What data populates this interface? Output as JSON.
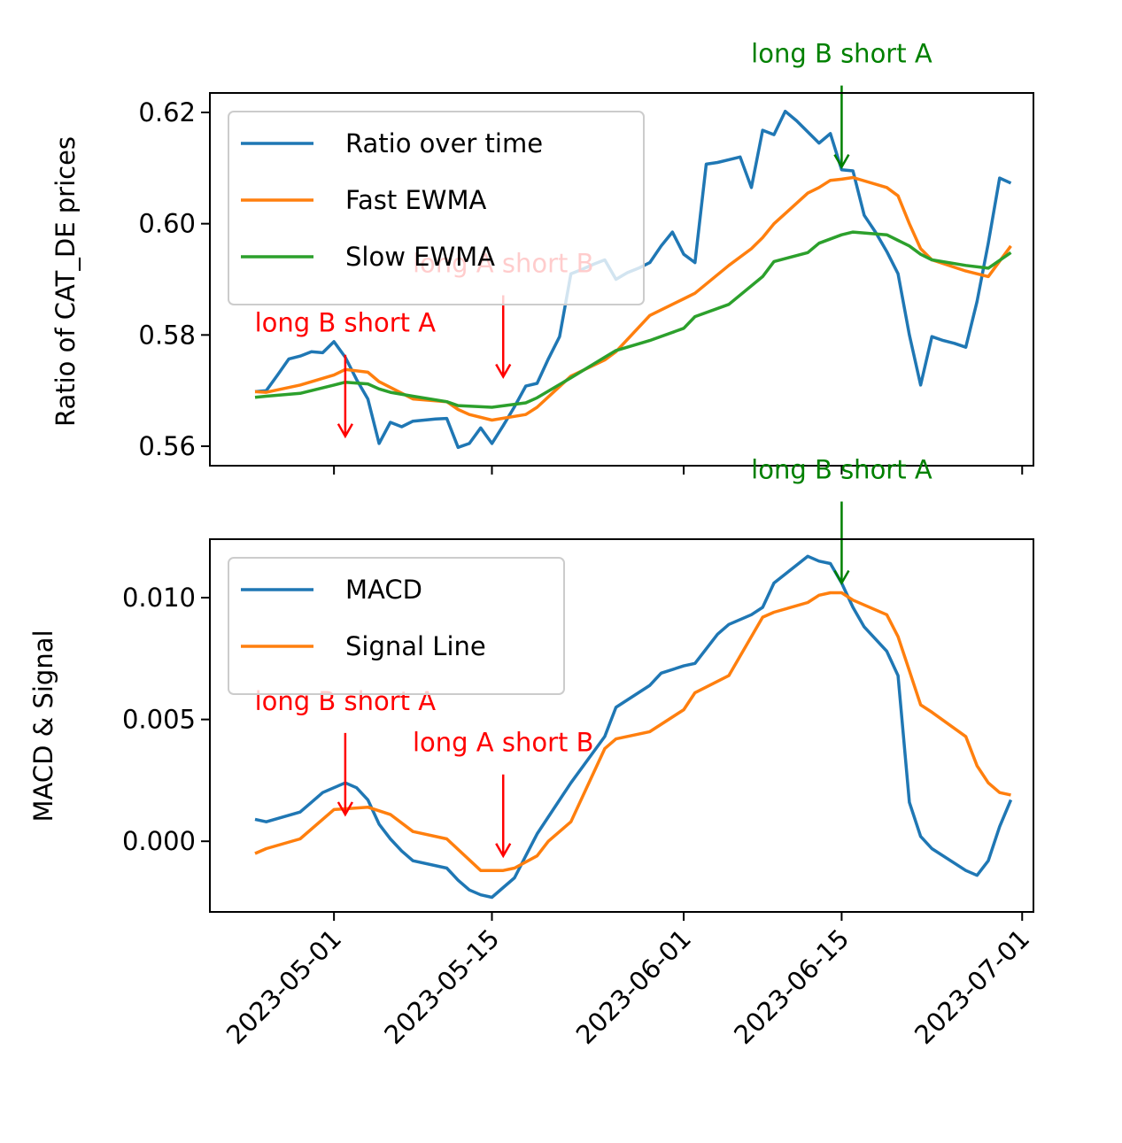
{
  "chart_data": [
    {
      "type": "line",
      "ylabel": "Ratio of CAT_DE prices",
      "ylim": [
        0.5565,
        0.6235
      ],
      "yticks": [
        0.56,
        0.58,
        0.6,
        0.62
      ],
      "ytick_labels": [
        "0.56",
        "0.58",
        "0.60",
        "0.62"
      ],
      "xlim": [
        "2023-04-20",
        "2023-07-02"
      ],
      "legend_position": "upper-left",
      "series": [
        {
          "name": "Ratio over time",
          "color": "#1f77b4",
          "x": [
            "2023-04-24",
            "2023-04-25",
            "2023-04-26",
            "2023-04-27",
            "2023-04-28",
            "2023-04-29",
            "2023-04-30",
            "2023-05-01",
            "2023-05-02",
            "2023-05-03",
            "2023-05-04",
            "2023-05-05",
            "2023-05-06",
            "2023-05-07",
            "2023-05-08",
            "2023-05-09",
            "2023-05-10",
            "2023-05-11",
            "2023-05-12",
            "2023-05-13",
            "2023-05-14",
            "2023-05-15",
            "2023-05-16",
            "2023-05-17",
            "2023-05-18",
            "2023-05-19",
            "2023-05-20",
            "2023-05-21",
            "2023-05-22",
            "2023-05-23",
            "2023-05-24",
            "2023-05-25",
            "2023-05-26",
            "2023-05-27",
            "2023-05-28",
            "2023-05-29",
            "2023-05-30",
            "2023-05-31",
            "2023-06-01",
            "2023-06-02",
            "2023-06-03",
            "2023-06-04",
            "2023-06-05",
            "2023-06-06",
            "2023-06-07",
            "2023-06-08",
            "2023-06-09",
            "2023-06-10",
            "2023-06-11",
            "2023-06-12",
            "2023-06-13",
            "2023-06-14",
            "2023-06-15",
            "2023-06-16",
            "2023-06-17",
            "2023-06-18",
            "2023-06-19",
            "2023-06-20",
            "2023-06-21",
            "2023-06-22",
            "2023-06-23",
            "2023-06-24",
            "2023-06-25",
            "2023-06-26",
            "2023-06-27",
            "2023-06-28",
            "2023-06-29",
            "2023-06-30"
          ],
          "values": [
            0.5698,
            0.57,
            0.5728,
            0.5757,
            0.5762,
            0.577,
            0.5768,
            0.5788,
            0.576,
            0.572,
            0.5685,
            0.5605,
            0.5643,
            0.5635,
            0.5645,
            0.5647,
            0.5649,
            0.565,
            0.5598,
            0.5605,
            0.5633,
            0.5605,
            0.5637,
            0.5671,
            0.5708,
            0.5713,
            0.5757,
            0.5797,
            0.591,
            0.5918,
            0.5927,
            0.5935,
            0.59,
            0.5912,
            0.592,
            0.593,
            0.596,
            0.5985,
            0.5945,
            0.593,
            0.6107,
            0.611,
            0.6115,
            0.612,
            0.6065,
            0.6168,
            0.616,
            0.6202,
            0.6185,
            0.6165,
            0.6145,
            0.6162,
            0.6097,
            0.6095,
            0.6015,
            0.5985,
            0.595,
            0.591,
            0.58,
            0.571,
            0.5797,
            0.579,
            0.5785,
            0.5778,
            0.586,
            0.5965,
            0.6082,
            0.6073
          ]
        },
        {
          "name": "Fast EWMA",
          "color": "#ff7f0e",
          "x": [
            "2023-04-24",
            "2023-04-25",
            "2023-04-28",
            "2023-05-01",
            "2023-05-02",
            "2023-05-04",
            "2023-05-05",
            "2023-05-08",
            "2023-05-11",
            "2023-05-12",
            "2023-05-13",
            "2023-05-15",
            "2023-05-18",
            "2023-05-19",
            "2023-05-22",
            "2023-05-25",
            "2023-05-26",
            "2023-05-29",
            "2023-06-01",
            "2023-06-02",
            "2023-06-05",
            "2023-06-07",
            "2023-06-08",
            "2023-06-09",
            "2023-06-12",
            "2023-06-13",
            "2023-06-14",
            "2023-06-15",
            "2023-06-16",
            "2023-06-19",
            "2023-06-20",
            "2023-06-21",
            "2023-06-22",
            "2023-06-23",
            "2023-06-26",
            "2023-06-28",
            "2023-06-30"
          ],
          "values": [
            0.5698,
            0.5697,
            0.571,
            0.5728,
            0.5738,
            0.5733,
            0.5716,
            0.5685,
            0.568,
            0.5666,
            0.5657,
            0.5647,
            0.5657,
            0.567,
            0.5726,
            0.5755,
            0.577,
            0.5835,
            0.5865,
            0.5875,
            0.5925,
            0.5955,
            0.5975,
            0.6,
            0.6055,
            0.6065,
            0.6078,
            0.608,
            0.6083,
            0.6065,
            0.605,
            0.6,
            0.5955,
            0.5935,
            0.5915,
            0.5905,
            0.596
          ]
        },
        {
          "name": "Slow EWMA",
          "color": "#2ca02c",
          "x": [
            "2023-04-24",
            "2023-04-25",
            "2023-04-28",
            "2023-05-01",
            "2023-05-02",
            "2023-05-04",
            "2023-05-05",
            "2023-05-06",
            "2023-05-08",
            "2023-05-11",
            "2023-05-12",
            "2023-05-15",
            "2023-05-18",
            "2023-05-19",
            "2023-05-22",
            "2023-05-25",
            "2023-05-26",
            "2023-05-29",
            "2023-06-01",
            "2023-06-02",
            "2023-06-05",
            "2023-06-08",
            "2023-06-09",
            "2023-06-12",
            "2023-06-13",
            "2023-06-15",
            "2023-06-16",
            "2023-06-19",
            "2023-06-20",
            "2023-06-21",
            "2023-06-22",
            "2023-06-23",
            "2023-06-26",
            "2023-06-28",
            "2023-06-30"
          ],
          "values": [
            0.5688,
            0.569,
            0.5695,
            0.571,
            0.5715,
            0.5712,
            0.5703,
            0.5697,
            0.569,
            0.568,
            0.5673,
            0.567,
            0.5678,
            0.5687,
            0.5723,
            0.576,
            0.5772,
            0.579,
            0.5812,
            0.5833,
            0.5855,
            0.5905,
            0.5932,
            0.5948,
            0.5965,
            0.598,
            0.5985,
            0.598,
            0.597,
            0.596,
            0.5945,
            0.5935,
            0.5925,
            0.592,
            0.5948
          ]
        }
      ],
      "annotations": [
        {
          "text": "long B short A",
          "date": "2023-05-02",
          "value": 0.5618,
          "color": "#ff0000"
        },
        {
          "text": "long A short B",
          "date": "2023-05-16",
          "value": 0.5725,
          "color": "#ff0000"
        },
        {
          "text": "long B short A",
          "date": "2023-06-15",
          "value": 0.6102,
          "color": "#008000"
        }
      ]
    },
    {
      "type": "line",
      "ylabel": "MACD & Signal",
      "ylim": [
        -0.0029,
        0.0124
      ],
      "yticks": [
        0.0,
        0.005,
        0.01
      ],
      "ytick_labels": [
        "0.000",
        "0.005",
        "0.010"
      ],
      "xlim": [
        "2023-04-20",
        "2023-07-02"
      ],
      "xticks": [
        "2023-05-01",
        "2023-05-15",
        "2023-06-01",
        "2023-06-15",
        "2023-07-01"
      ],
      "xtick_labels": [
        "2023-05-01",
        "2023-05-15",
        "2023-06-01",
        "2023-06-15",
        "2023-07-01"
      ],
      "legend_position": "upper-left",
      "series": [
        {
          "name": "MACD",
          "color": "#1f77b4",
          "x": [
            "2023-04-24",
            "2023-04-25",
            "2023-04-28",
            "2023-04-29",
            "2023-04-30",
            "2023-05-01",
            "2023-05-02",
            "2023-05-03",
            "2023-05-04",
            "2023-05-05",
            "2023-05-06",
            "2023-05-07",
            "2023-05-08",
            "2023-05-11",
            "2023-05-12",
            "2023-05-13",
            "2023-05-14",
            "2023-05-15",
            "2023-05-16",
            "2023-05-17",
            "2023-05-18",
            "2023-05-19",
            "2023-05-22",
            "2023-05-25",
            "2023-05-26",
            "2023-05-29",
            "2023-05-30",
            "2023-06-01",
            "2023-06-02",
            "2023-06-04",
            "2023-06-05",
            "2023-06-07",
            "2023-06-08",
            "2023-06-09",
            "2023-06-12",
            "2023-06-13",
            "2023-06-14",
            "2023-06-15",
            "2023-06-16",
            "2023-06-17",
            "2023-06-19",
            "2023-06-20",
            "2023-06-21",
            "2023-06-22",
            "2023-06-23",
            "2023-06-26",
            "2023-06-27",
            "2023-06-28",
            "2023-06-29",
            "2023-06-30"
          ],
          "values": [
            0.0009,
            0.0008,
            0.0012,
            0.0016,
            0.002,
            0.0022,
            0.0024,
            0.0022,
            0.0017,
            0.0007,
            0.0001,
            -0.0004,
            -0.0008,
            -0.0011,
            -0.0016,
            -0.002,
            -0.0022,
            -0.0023,
            -0.0019,
            -0.0015,
            -0.0006,
            0.0003,
            0.0024,
            0.0043,
            0.0055,
            0.0064,
            0.0069,
            0.0072,
            0.0073,
            0.0085,
            0.0089,
            0.0093,
            0.0096,
            0.0106,
            0.0117,
            0.0115,
            0.0114,
            0.0106,
            0.0096,
            0.0088,
            0.0078,
            0.0068,
            0.0016,
            0.0002,
            -0.0003,
            -0.0012,
            -0.0014,
            -0.0008,
            0.0006,
            0.0017
          ]
        },
        {
          "name": "Signal Line",
          "color": "#ff7f0e",
          "x": [
            "2023-04-24",
            "2023-04-25",
            "2023-04-28",
            "2023-05-01",
            "2023-05-04",
            "2023-05-06",
            "2023-05-08",
            "2023-05-11",
            "2023-05-14",
            "2023-05-16",
            "2023-05-17",
            "2023-05-19",
            "2023-05-20",
            "2023-05-22",
            "2023-05-25",
            "2023-05-26",
            "2023-05-29",
            "2023-06-01",
            "2023-06-02",
            "2023-06-05",
            "2023-06-08",
            "2023-06-09",
            "2023-06-12",
            "2023-06-13",
            "2023-06-14",
            "2023-06-15",
            "2023-06-16",
            "2023-06-19",
            "2023-06-20",
            "2023-06-21",
            "2023-06-22",
            "2023-06-23",
            "2023-06-26",
            "2023-06-27",
            "2023-06-28",
            "2023-06-29",
            "2023-06-30"
          ],
          "values": [
            -0.0005,
            -0.0003,
            0.0001,
            0.0013,
            0.0014,
            0.0011,
            0.0004,
            0.0001,
            -0.0012,
            -0.0012,
            -0.0011,
            -0.0006,
            0.0,
            0.0008,
            0.0038,
            0.0042,
            0.0045,
            0.0054,
            0.0061,
            0.0068,
            0.0092,
            0.0094,
            0.0098,
            0.0101,
            0.0102,
            0.0102,
            0.0099,
            0.0093,
            0.0084,
            0.007,
            0.0056,
            0.0053,
            0.0043,
            0.0031,
            0.0024,
            0.002,
            0.0019
          ]
        }
      ],
      "annotations": [
        {
          "text": "long B short A",
          "date": "2023-05-02",
          "value": 0.0011,
          "color": "#ff0000"
        },
        {
          "text": "long A short B",
          "date": "2023-05-16",
          "value": -0.0006,
          "color": "#ff0000"
        },
        {
          "text": "long B short A",
          "date": "2023-06-15",
          "value": 0.0106,
          "color": "#008000"
        }
      ]
    }
  ]
}
